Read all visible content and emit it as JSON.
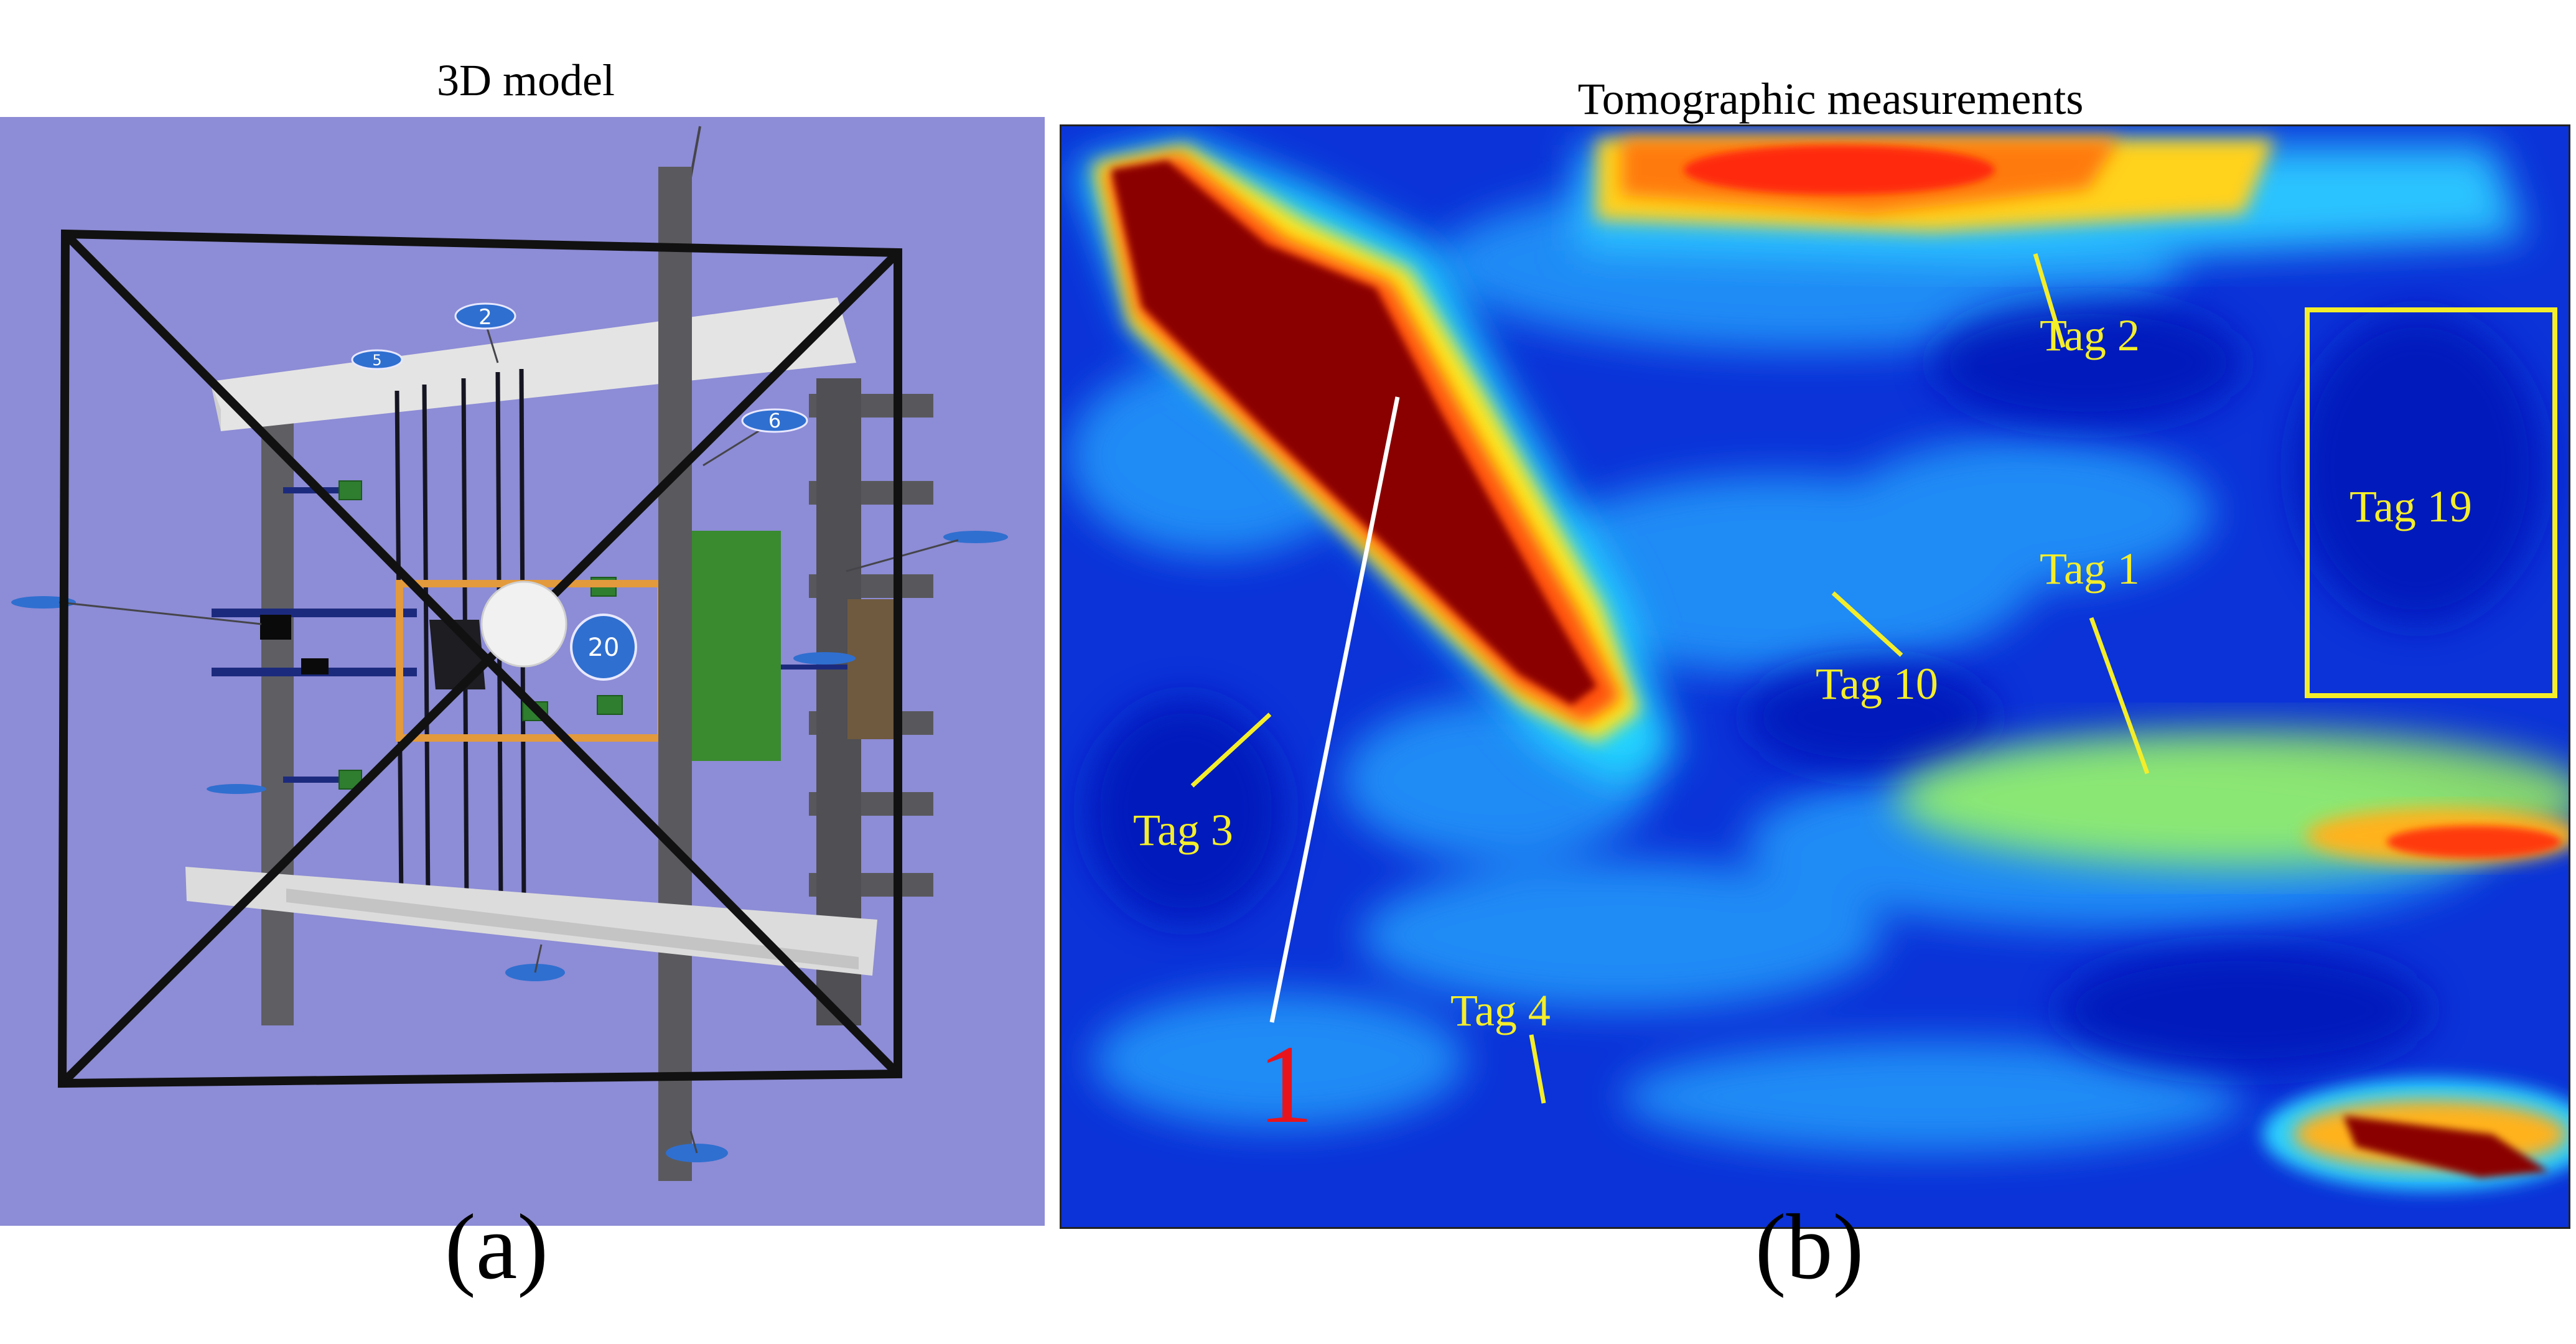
{
  "panel_a": {
    "title": "3D model",
    "caption": "(a)",
    "tag_badges": [
      "2",
      "5",
      "6",
      "20"
    ],
    "colors": {
      "background": "#8d8cd6",
      "frame": "#111111",
      "pole": "#5a5a5e",
      "rail": "#e2e2e2",
      "board": "#3a8a30",
      "box": "#e39a3c",
      "tag": "#2f6fd0"
    }
  },
  "panel_b": {
    "title": "Tomographic measurements",
    "caption": "(b)",
    "colormap": "jet",
    "labels": {
      "tag2": "Tag 2",
      "tag19": "Tag 19",
      "tag1": "Tag 1",
      "tag10": "Tag 10",
      "tag3": "Tag 3",
      "tag4": "Tag 4",
      "path_number": "1"
    },
    "colors": {
      "label": "#f4ee2a",
      "path": "#ffffff",
      "path_number": "#e8141c"
    }
  }
}
